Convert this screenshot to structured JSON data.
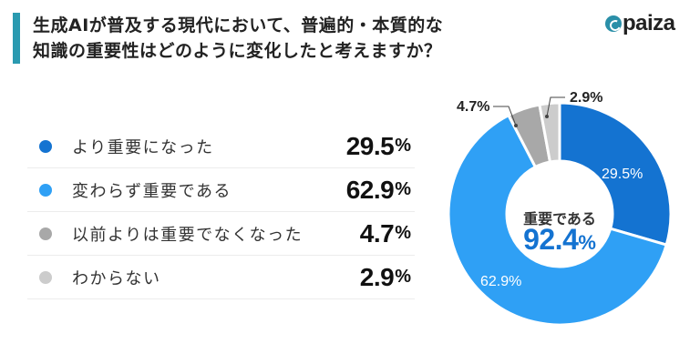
{
  "header": {
    "title_line1": "生成AIが普及する現代において、普遍的・本質的な",
    "title_line2": "知識の重要性はどのように変化したと考えますか？",
    "accent_color": "#2a9ab0",
    "logo_text": "paiza"
  },
  "legend": {
    "items": [
      {
        "label": "より重要になった",
        "value": "29.5",
        "unit": "%",
        "color": "#1473d1"
      },
      {
        "label": "変わらず重要である",
        "value": "62.9",
        "unit": "%",
        "color": "#2fa0f5"
      },
      {
        "label": "以前よりは重要でなくなった",
        "value": "4.7",
        "unit": "%",
        "color": "#a8a8a8"
      },
      {
        "label": "わからない",
        "value": "2.9",
        "unit": "%",
        "color": "#cccccc"
      }
    ]
  },
  "donut": {
    "center_caption": "重要である",
    "center_value": "92.4",
    "center_unit": "%",
    "slice_labels": {
      "s0": "29.5%",
      "s1": "62.9%",
      "s2": "4.7%",
      "s3": "2.9%"
    }
  },
  "chart_data": {
    "type": "pie",
    "variant": "donut",
    "title": "生成AIが普及する現代において、普遍的・本質的な知識の重要性はどのように変化したと考えますか？",
    "categories": [
      "より重要になった",
      "変わらず重要である",
      "以前よりは重要でなくなった",
      "わからない"
    ],
    "values": [
      29.5,
      62.9,
      4.7,
      2.9
    ],
    "colors": [
      "#1473d1",
      "#2fa0f5",
      "#a8a8a8",
      "#cccccc"
    ],
    "unit": "%",
    "center_annotation": {
      "label": "重要である",
      "value": 92.4
    },
    "legend_position": "left"
  }
}
